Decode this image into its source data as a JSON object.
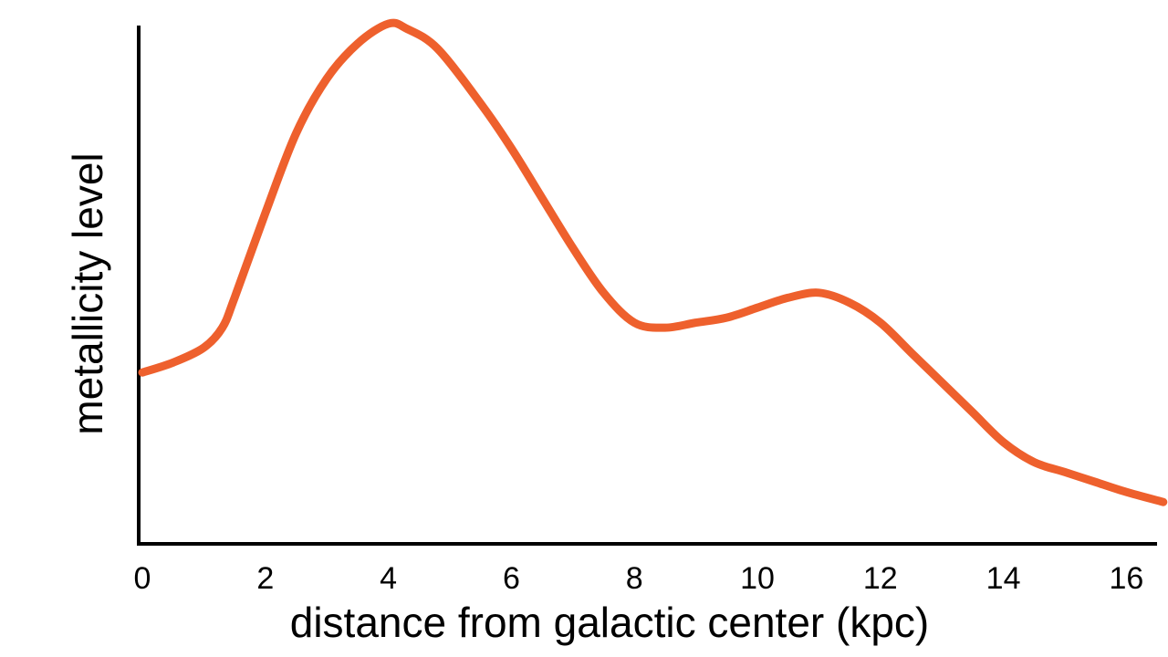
{
  "chart_data": {
    "type": "line",
    "title": "",
    "xlabel": "distance from galactic center (kpc)",
    "ylabel": "metallicity level",
    "x_ticks": [
      0,
      2,
      4,
      6,
      8,
      10,
      12,
      14,
      16
    ],
    "xlim": [
      0,
      16.6
    ],
    "y_ticks_shown": false,
    "grid": false,
    "legend": "none",
    "line_color": "#EE602D",
    "axis_color": "#000000",
    "series": [
      {
        "x": [
          0,
          0.5,
          1.0,
          1.3,
          1.5,
          2.0,
          2.5,
          3.0,
          3.5,
          4.0,
          4.3,
          4.8,
          5.5,
          6.0,
          6.5,
          7.0,
          7.5,
          8.0,
          8.5,
          9.0,
          9.5,
          10.0,
          10.5,
          11.0,
          11.5,
          12.0,
          12.5,
          13.0,
          13.5,
          14.0,
          14.5,
          15.0,
          15.5,
          16.0,
          16.6
        ],
        "y": [
          0.3,
          0.32,
          0.35,
          0.39,
          0.45,
          0.62,
          0.78,
          0.89,
          0.96,
          1.0,
          0.99,
          0.95,
          0.84,
          0.75,
          0.65,
          0.55,
          0.46,
          0.4,
          0.39,
          0.4,
          0.41,
          0.43,
          0.45,
          0.46,
          0.44,
          0.4,
          0.34,
          0.28,
          0.22,
          0.16,
          0.12,
          0.1,
          0.08,
          0.06,
          0.04
        ]
      }
    ]
  }
}
